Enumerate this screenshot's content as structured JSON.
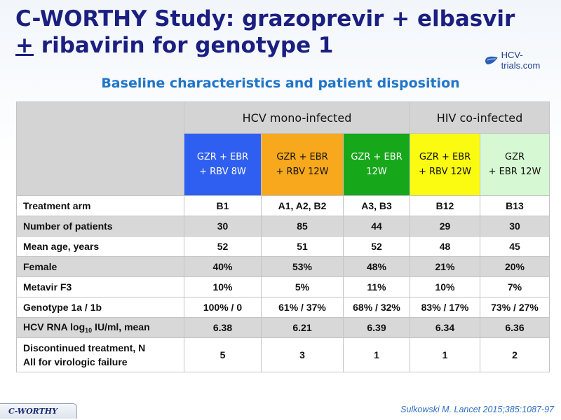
{
  "title": {
    "line1": "C-WORTHY Study: grazoprevir + elbasvir",
    "plus_minus": "+",
    "line2_rest": " ribavirin for genotype 1"
  },
  "logo": {
    "text": "HCV-trials.com"
  },
  "subtitle": "Baseline characteristics and patient disposition",
  "table": {
    "groups": [
      {
        "label": "HCV mono-infected"
      },
      {
        "label": "HIV co-infected"
      }
    ],
    "arms": [
      {
        "line1": "GZR + EBR",
        "line2": "+ RBV 8W",
        "color": "#2f5ff0"
      },
      {
        "line1": "GZR + EBR",
        "line2": "+ RBV 12W",
        "color": "#f7a81c"
      },
      {
        "line1": "GZR + EBR",
        "line2": "12W",
        "color": "#17a71a"
      },
      {
        "line1": "GZR + EBR",
        "line2": "+ RBV 12W",
        "color": "#fbfb12"
      },
      {
        "line1": "GZR",
        "line2": "+ EBR 12W",
        "color": "#d6f8d2"
      }
    ],
    "rows": [
      {
        "label": "Treatment arm",
        "values": [
          "B1",
          "A1, A2,  B2",
          "A3, B3",
          "B12",
          "B13"
        ]
      },
      {
        "label": "Number of patients",
        "values": [
          "30",
          "85",
          "44",
          "29",
          "30"
        ]
      },
      {
        "label": "Mean age, years",
        "values": [
          "52",
          "51",
          "52",
          "48",
          "45"
        ]
      },
      {
        "label": "Female",
        "values": [
          "40%",
          "53%",
          "48%",
          "21%",
          "20%"
        ]
      },
      {
        "label": "Metavir F3",
        "values": [
          "10%",
          "5%",
          "11%",
          "10%",
          "7%"
        ]
      },
      {
        "label": "Genotype 1a / 1b",
        "values": [
          "100% / 0",
          "61% / 37%",
          "68% / 32%",
          "83% / 17%",
          "73% / 27%"
        ]
      },
      {
        "label_pre": "HCV RNA log",
        "label_sub": "10",
        "label_post": " IU/ml, mean",
        "values": [
          "6.38",
          "6.21",
          "6.39",
          "6.34",
          "6.36"
        ]
      },
      {
        "label_line1": "Discontinued treatment, N",
        "label_line2": "All for virologic failure",
        "values": [
          "5",
          "3",
          "1",
          "1",
          "2"
        ]
      }
    ]
  },
  "footer": {
    "tag": "C-WORTHY",
    "citation": "Sulkowski M. Lancet 2015;385:1087-97"
  }
}
